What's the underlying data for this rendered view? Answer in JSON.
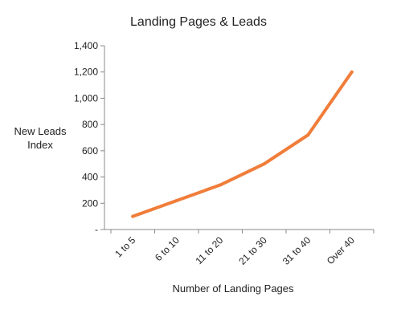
{
  "chart_data": {
    "type": "line",
    "title": "Landing Pages & Leads",
    "xlabel": "Number of Landing Pages",
    "ylabel_lines": [
      "New Leads",
      "Index"
    ],
    "categories": [
      "1 to 5",
      "6 to 10",
      "11 to 20",
      "21 to 30",
      "31 to 40",
      "Over 40"
    ],
    "series": [
      {
        "values": [
          100,
          220,
          340,
          500,
          720,
          1200
        ]
      }
    ],
    "ylim": [
      0,
      1400
    ],
    "y_ticks": [
      0,
      200,
      400,
      600,
      800,
      1000,
      1200,
      1400
    ],
    "y_tick_labels": [
      "-",
      "200",
      "400",
      "600",
      "800",
      "1,000",
      "1,200",
      "1,400"
    ],
    "grid": false,
    "line_color": "#F07D3A",
    "axis_color": "#888888"
  }
}
